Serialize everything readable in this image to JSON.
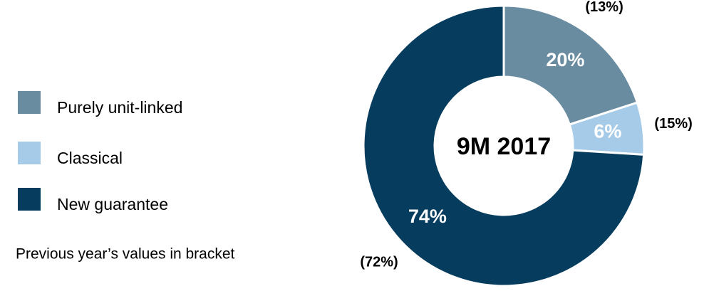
{
  "chart_data": {
    "type": "pie",
    "center_label": "9M 2017",
    "categories": [
      "Purely unit-linked",
      "Classical",
      "New guarantee"
    ],
    "values": [
      20,
      6,
      74
    ],
    "value_labels": [
      "20%",
      "6%",
      "74%"
    ],
    "colors": [
      "#6a8ca1",
      "#a6cbe8",
      "#063c5d"
    ],
    "previous_values": [
      13,
      15,
      72
    ],
    "previous_value_labels": [
      "(13%)",
      "(15%)",
      "(72%)"
    ],
    "note": "Previous year’s values in bracket",
    "legend": "left"
  }
}
